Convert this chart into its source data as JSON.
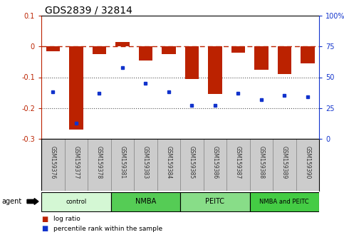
{
  "title": "GDS2839 / 32814",
  "samples": [
    "GSM159376",
    "GSM159377",
    "GSM159378",
    "GSM159381",
    "GSM159383",
    "GSM159384",
    "GSM159385",
    "GSM159386",
    "GSM159387",
    "GSM159388",
    "GSM159389",
    "GSM159390"
  ],
  "log_ratio": [
    -0.015,
    -0.27,
    -0.025,
    0.015,
    -0.045,
    -0.025,
    -0.105,
    -0.155,
    -0.02,
    -0.075,
    -0.09,
    -0.055
  ],
  "percentile_rank": [
    38,
    13,
    37,
    58,
    45,
    38,
    27,
    27,
    37,
    32,
    35,
    34
  ],
  "groups": [
    {
      "label": "control",
      "start": 0,
      "end": 3,
      "color": "#d4f7d4"
    },
    {
      "label": "NMBA",
      "start": 3,
      "end": 6,
      "color": "#55cc55"
    },
    {
      "label": "PEITC",
      "start": 6,
      "end": 9,
      "color": "#88dd88"
    },
    {
      "label": "NMBA and PEITC",
      "start": 9,
      "end": 12,
      "color": "#44cc44"
    }
  ],
  "ylim_left": [
    -0.3,
    0.1
  ],
  "ylim_right": [
    0,
    100
  ],
  "bar_color": "#bb2200",
  "dot_color": "#1133cc",
  "hline_color": "#bb2200",
  "grid_color": "#555555",
  "bg_color": "#ffffff",
  "plot_bg": "#ffffff",
  "title_fontsize": 10,
  "tick_fontsize": 7,
  "label_fontsize": 7
}
